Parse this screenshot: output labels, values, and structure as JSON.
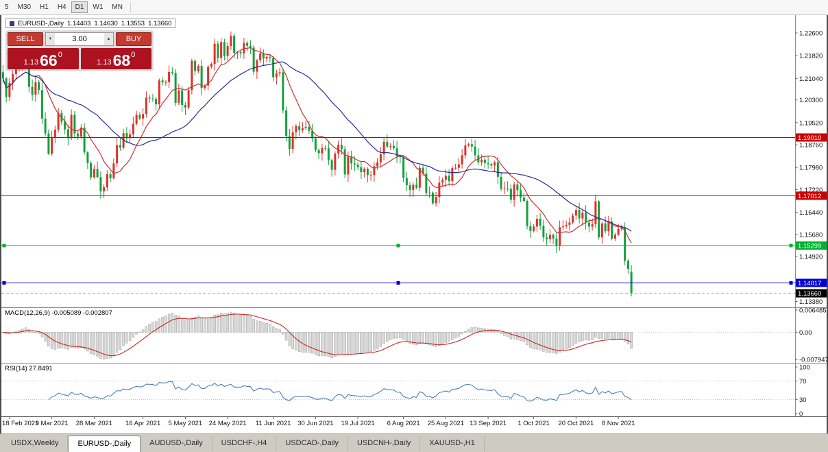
{
  "toolbar": {
    "timeframes": [
      "5",
      "M30",
      "H1",
      "H4",
      "D1",
      "W1",
      "MN"
    ],
    "active": "D1"
  },
  "chart_title": {
    "symbol": "EURUSD-,Daily",
    "open": "1.14403",
    "high": "1.14630",
    "low": "1.13553",
    "close": "1.13660"
  },
  "trade_panel": {
    "sell_label": "SELL",
    "buy_label": "BUY",
    "volume": "3.00",
    "sell_price": {
      "big": "1.13",
      "main": "66",
      "sup": "0"
    },
    "buy_price": {
      "big": "1.13",
      "main": "68",
      "sup": "0"
    }
  },
  "icons": {
    "spinner_up": "▲",
    "spinner_down": "▼"
  },
  "indicators": {
    "macd": {
      "title": "MACD(12,26,9) -0.005089 -0.002807"
    },
    "rsi": {
      "title": "RSI(14) 27.8491"
    }
  },
  "tabs": [
    {
      "label": "USDX,Weekly",
      "active": false
    },
    {
      "label": "EURUSD-,Daily",
      "active": true
    },
    {
      "label": "AUDUSD-,Daily",
      "active": false
    },
    {
      "label": "USDCHF-,H4",
      "active": false
    },
    {
      "label": "USDCAD-,Daily",
      "active": false
    },
    {
      "label": "USDCNH-,Daily",
      "active": false
    },
    {
      "label": "XAUUSD-,H1",
      "active": false
    }
  ],
  "chart_data": {
    "type": "candlestick",
    "title": "EURUSD-,Daily",
    "price_range": [
      1.1318,
      1.2312
    ],
    "first_open": 1.2125,
    "closes": [
      1.2104,
      1.204,
      1.2089,
      1.2119,
      1.2157,
      1.215,
      1.2168,
      1.2176,
      1.2075,
      1.2048,
      1.2091,
      1.2064,
      1.1966,
      1.1915,
      1.1845,
      1.19,
      1.1928,
      1.1985,
      1.1955,
      1.1929,
      1.1899,
      1.1979,
      1.1915,
      1.1904,
      1.1935,
      1.185,
      1.1813,
      1.1764,
      1.1793,
      1.1765,
      1.1716,
      1.173,
      1.1775,
      1.1761,
      1.1812,
      1.1875,
      1.1866,
      1.1916,
      1.1899,
      1.1912,
      1.1948,
      1.1979,
      1.1966,
      1.1982,
      1.2038,
      1.2035,
      1.2034,
      1.2015,
      1.2097,
      1.209,
      1.2091,
      1.2126,
      1.2123,
      1.202,
      1.2063,
      1.2013,
      1.2004,
      1.2064,
      1.2164,
      1.2129,
      1.2147,
      1.2071,
      1.208,
      1.2144,
      1.2154,
      1.2223,
      1.2174,
      1.2229,
      1.2181,
      1.2215,
      1.225,
      1.2192,
      1.2194,
      1.219,
      1.2226,
      1.2216,
      1.221,
      1.2127,
      1.2166,
      1.219,
      1.2172,
      1.2178,
      1.2174,
      1.2108,
      1.2121,
      1.2125,
      1.1994,
      1.1906,
      1.1862,
      1.1919,
      1.194,
      1.1926,
      1.1933,
      1.1937,
      1.1924,
      1.1898,
      1.1858,
      1.1847,
      1.1865,
      1.1864,
      1.1823,
      1.179,
      1.1846,
      1.1876,
      1.1861,
      1.1774,
      1.1836,
      1.1812,
      1.1808,
      1.1799,
      1.1782,
      1.1794,
      1.1772,
      1.1772,
      1.1802,
      1.1816,
      1.1844,
      1.1886,
      1.187,
      1.1872,
      1.1864,
      1.1836,
      1.1834,
      1.1762,
      1.1737,
      1.1721,
      1.1739,
      1.1729,
      1.1797,
      1.1777,
      1.171,
      1.1712,
      1.1675,
      1.1697,
      1.1746,
      1.1756,
      1.177,
      1.1751,
      1.1796,
      1.1797,
      1.1809,
      1.184,
      1.1874,
      1.1878,
      1.187,
      1.184,
      1.1816,
      1.1825,
      1.1813,
      1.181,
      1.1805,
      1.1816,
      1.1766,
      1.1725,
      1.1726,
      1.1725,
      1.1687,
      1.174,
      1.172,
      1.1695,
      1.1683,
      1.1597,
      1.158,
      1.1595,
      1.1622,
      1.1598,
      1.1558,
      1.1552,
      1.1567,
      1.1554,
      1.1529,
      1.1593,
      1.1596,
      1.1601,
      1.1609,
      1.1633,
      1.1652,
      1.1623,
      1.1643,
      1.1609,
      1.1595,
      1.1603,
      1.1682,
      1.1558,
      1.1606,
      1.1579,
      1.1612,
      1.1554,
      1.1567,
      1.1587,
      1.1593,
      1.1478,
      1.145,
      1.1366
    ],
    "last_candle": {
      "open": 1.14403,
      "high": 1.1463,
      "low": 1.13553,
      "close": 1.1366
    },
    "up_color": "#dd3229",
    "down_color": "#13a03b",
    "ma_fast": {
      "period": 10,
      "color": "#cf2f2f"
    },
    "ma_slow": {
      "period": 30,
      "color": "#2b2b96"
    },
    "price_ticks": [
      "1.22600",
      "1.21820",
      "1.21040",
      "1.20300",
      "1.19520",
      "1.18760",
      "1.17980",
      "1.17220",
      "1.16440",
      "1.15680",
      "1.14920",
      "1.13380"
    ],
    "levels": [
      {
        "value": 1.1901,
        "label": "1.19010",
        "color": "#cc0000",
        "handles": false
      },
      {
        "value": 1.17012,
        "label": "1.17012",
        "color": "#cc0000",
        "handles": false
      },
      {
        "value": 1.15299,
        "label": "1.15299",
        "color": "#00b22d",
        "handles": true
      },
      {
        "value": 1.14017,
        "label": "1.14017",
        "color": "#0000d8",
        "handles": true
      }
    ],
    "current_price": {
      "value": 1.1366,
      "label": "1.13660",
      "color": "#000000"
    },
    "macd": {
      "range": [
        -0.007947,
        0.006485
      ],
      "axis": [
        "0.006485",
        "0.00",
        "-0.007947"
      ],
      "histogram_color": "#d9d9d9",
      "histogram_border": "#9f9f9f",
      "signal_color": "#c4281e"
    },
    "rsi": {
      "period": 14,
      "levels": [
        70,
        30
      ],
      "axis": [
        "100",
        "70",
        "30",
        "0"
      ],
      "color": "#4a7ebb"
    },
    "date_labels": [
      "18 Feb 2021",
      "9 Mar 2021",
      "28 Mar 2021",
      "16 Apr 2021",
      "5 May 2021",
      "24 May 2021",
      "11 Jun 2021",
      "30 Jun 2021",
      "19 Jul 2021",
      "6 Aug 2021",
      "25 Aug 2021",
      "13 Sep 2021",
      "1 Oct 2021",
      "20 Oct 2021",
      "8 Nov 2021"
    ],
    "date_label_indices": [
      2,
      15,
      28,
      43,
      56,
      69,
      83,
      96,
      109,
      123,
      136,
      149,
      163,
      176,
      189
    ]
  }
}
